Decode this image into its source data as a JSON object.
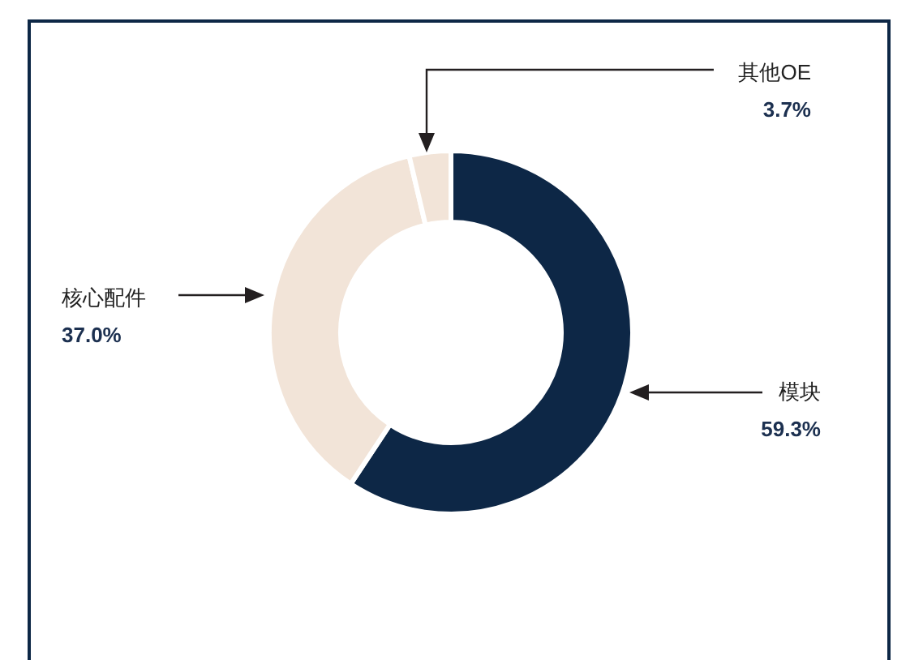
{
  "chart_data": {
    "type": "donut",
    "categories": [
      "模块",
      "核心配件",
      "其他OE"
    ],
    "values": [
      59.3,
      37.0,
      3.7
    ],
    "colors": [
      "#0d2746",
      "#f2e4d8",
      "#f2e4d8"
    ],
    "value_labels": [
      "59.3%",
      "37.0%",
      "3.7%"
    ]
  }
}
